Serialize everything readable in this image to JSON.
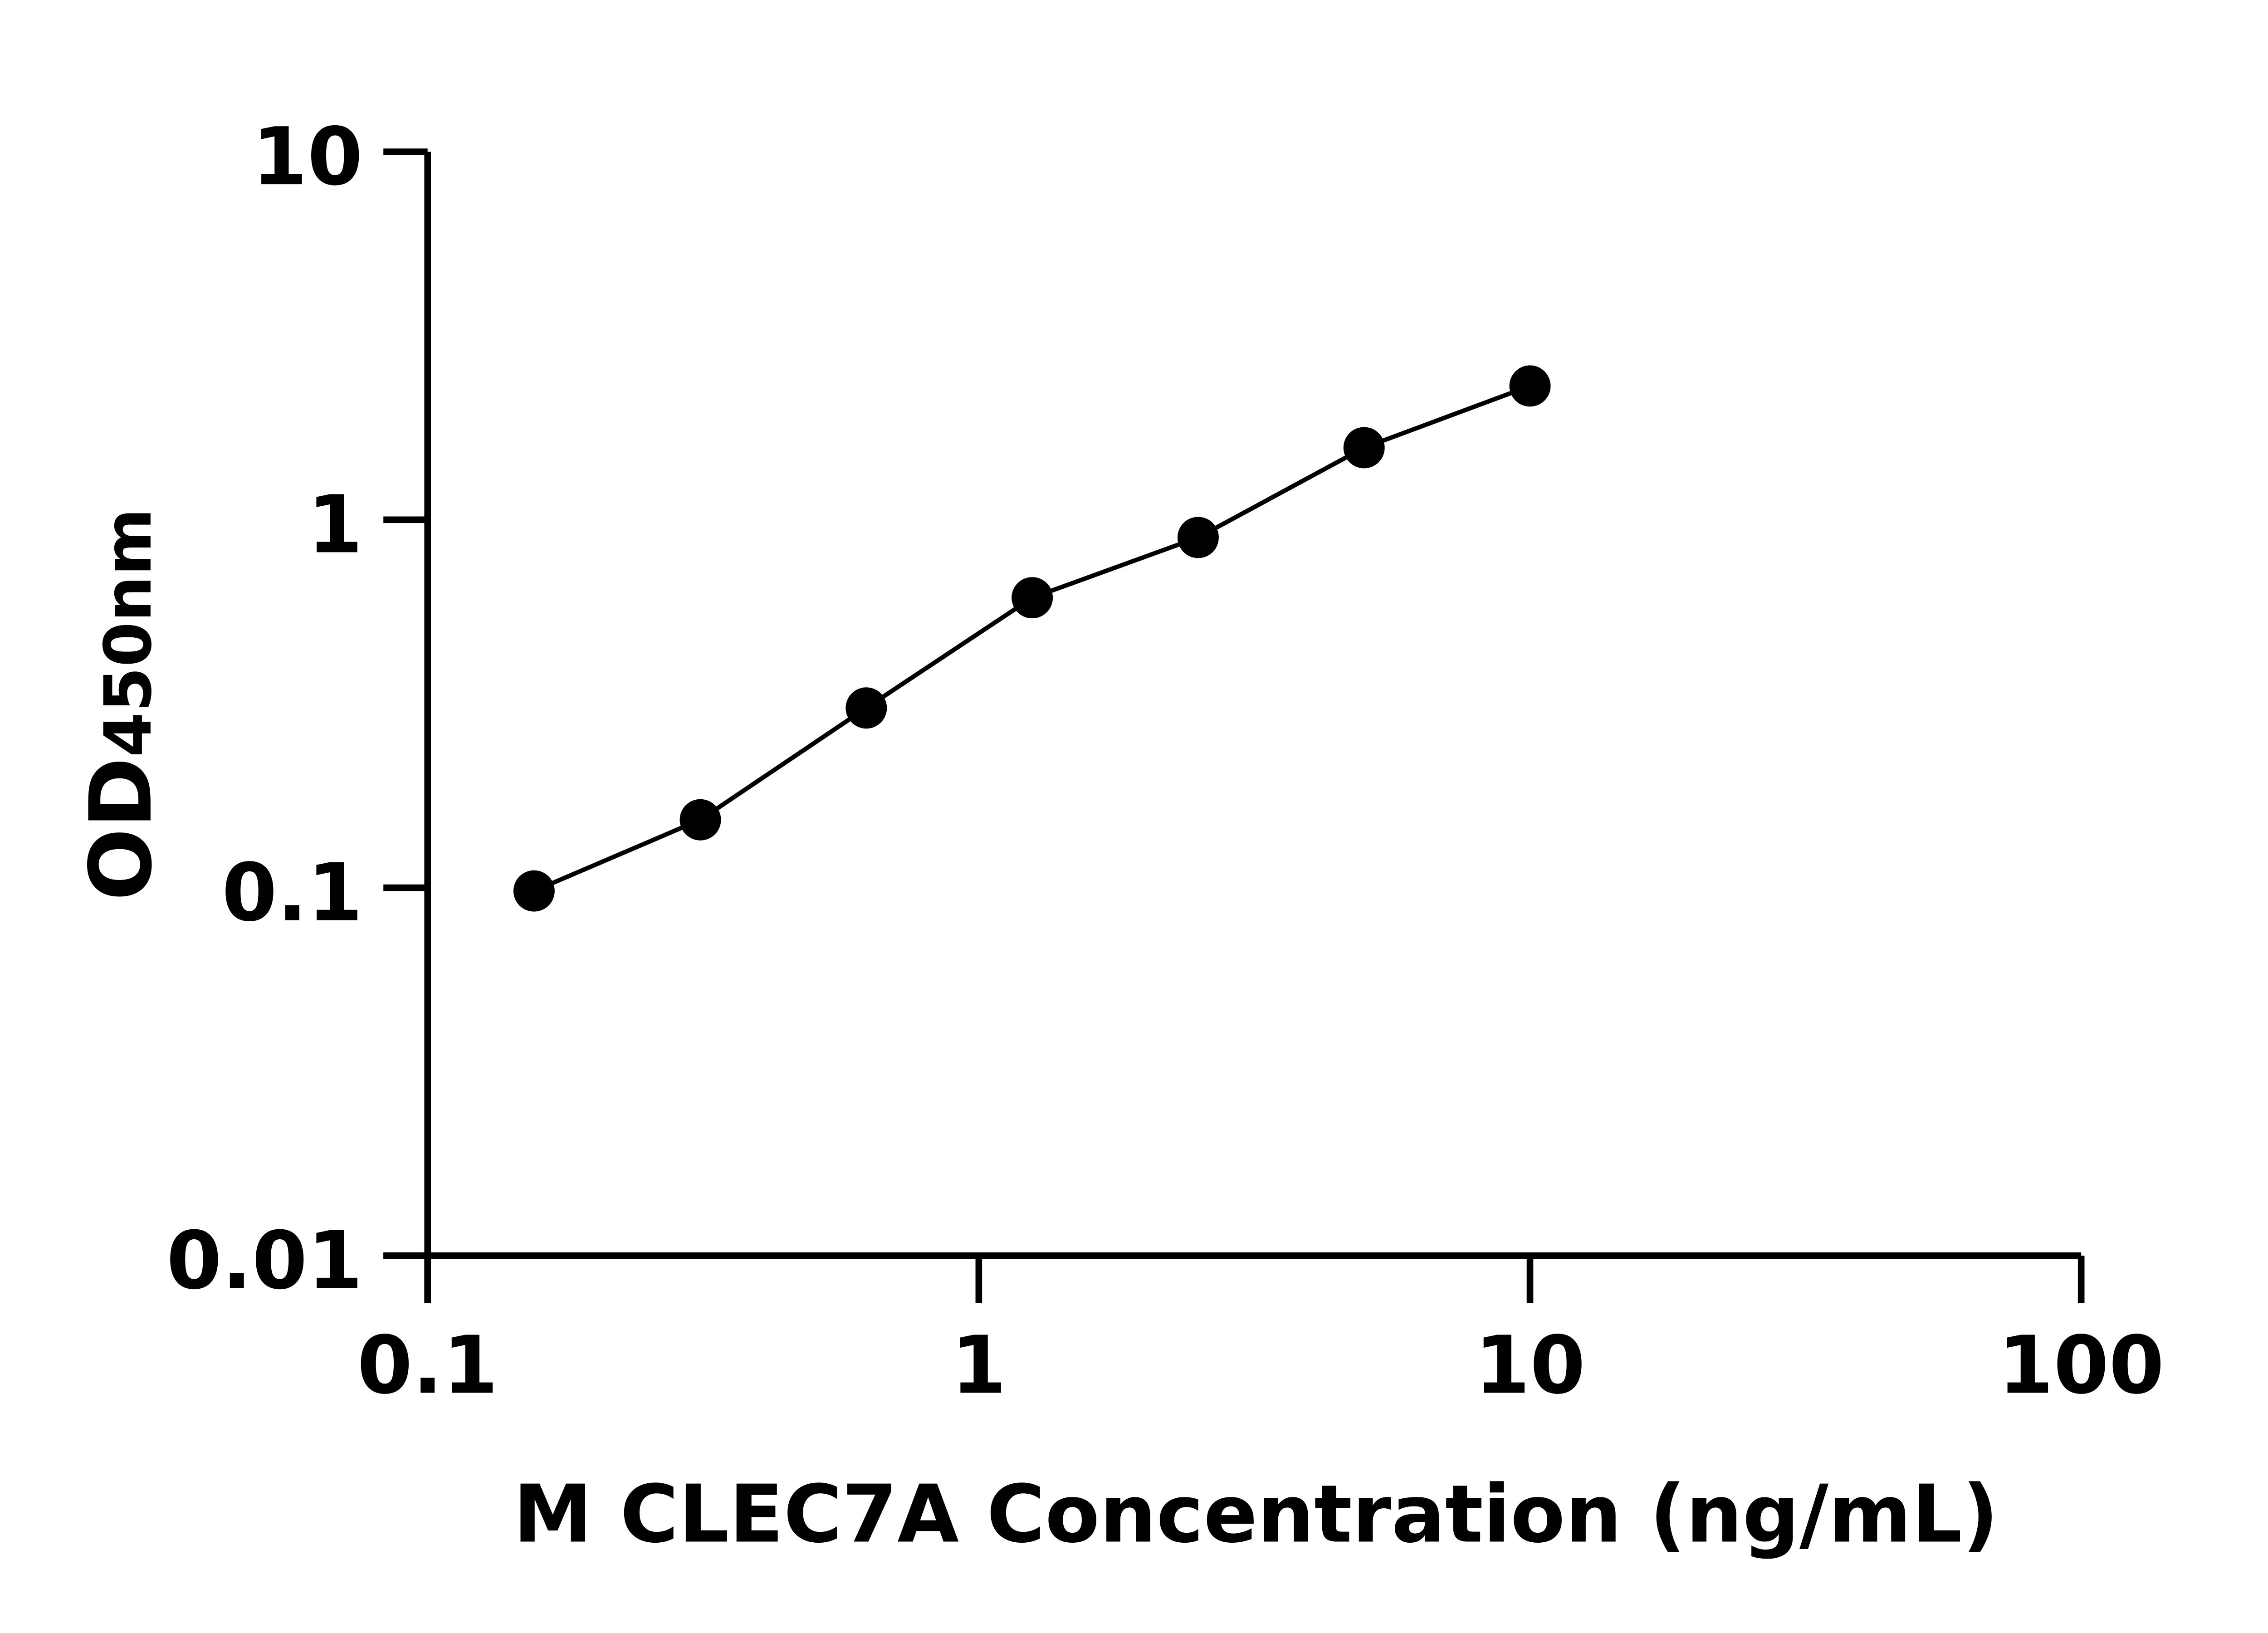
{
  "chart_data": {
    "type": "line",
    "title": "",
    "xlabel": "M CLEC7A Concentration (ng/mL)",
    "ylabel_main": "OD",
    "ylabel_sub": "450nm",
    "x_scale": "log",
    "y_scale": "log",
    "xlim": [
      0.1,
      100
    ],
    "ylim": [
      0.01,
      10
    ],
    "x_ticks": [
      "0.1",
      "1",
      "10",
      "100"
    ],
    "y_ticks": [
      "0.01",
      "0.1",
      "1",
      "10"
    ],
    "grid": false,
    "legend": "none",
    "marker": "filled-circle",
    "color": "#000000",
    "series": [
      {
        "x": [
          0.156,
          0.3125,
          0.625,
          1.25,
          2.5,
          5,
          10
        ],
        "y": [
          0.098,
          0.153,
          0.308,
          0.614,
          0.895,
          1.57,
          2.31
        ]
      }
    ]
  }
}
